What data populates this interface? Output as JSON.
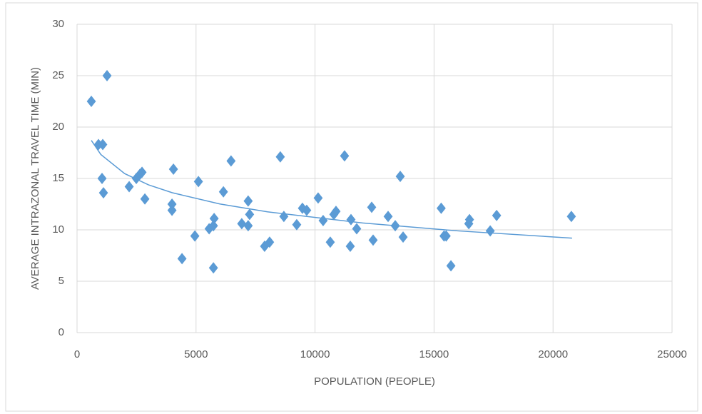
{
  "chart_data": {
    "type": "scatter",
    "x_label": "POPULATION (PEOPLE)",
    "y_label": "AVERAGE INTRAZONAL TRAVEL TIME (MIN)",
    "series": [
      {
        "name": "Intrazonal travel time",
        "color": "#5b9bd5",
        "x": [
          600,
          1260,
          900,
          1080,
          1050,
          1110,
          2190,
          2490,
          2640,
          2730,
          2850,
          4050,
          3990,
          3990,
          4410,
          4950,
          5100,
          5550,
          5730,
          5760,
          5730,
          6150,
          6470,
          6920,
          7190,
          7250,
          7190,
          7880,
          8090,
          8540,
          8690,
          9230,
          9470,
          9650,
          10130,
          10340,
          10640,
          10790,
          10880,
          11240,
          11510,
          11480,
          11750,
          12380,
          12440,
          13070,
          13370,
          13580,
          13700,
          15300,
          15420,
          15510,
          15710,
          16460,
          16490,
          17360,
          17630,
          20770
        ],
        "values": [
          22.5,
          25,
          18.3,
          18.3,
          15,
          13.6,
          14.2,
          15,
          15.4,
          15.6,
          13,
          15.9,
          12.5,
          11.9,
          7.2,
          9.4,
          14.7,
          10.1,
          10.4,
          11.1,
          6.3,
          13.7,
          16.7,
          10.6,
          12.8,
          11.5,
          10.4,
          8.4,
          8.8,
          17.1,
          11.3,
          10.5,
          12.1,
          11.9,
          13.1,
          10.9,
          8.8,
          11.5,
          11.8,
          17.2,
          11,
          8.4,
          10.1,
          12.2,
          9,
          11.3,
          10.4,
          15.2,
          9.3,
          12.1,
          9.4,
          9.4,
          6.5,
          10.6,
          11,
          9.9,
          11.4,
          11.3
        ]
      }
    ],
    "trendline": {
      "type": "logarithmic",
      "color": "#5b9bd5",
      "x": [
        600,
        1000,
        2000,
        3000,
        4000,
        6000,
        8000,
        12000,
        16000,
        20800
      ],
      "values": [
        18.7,
        17.33,
        15.47,
        14.38,
        13.61,
        12.52,
        11.75,
        10.67,
        9.9,
        9.19
      ]
    },
    "xlim": [
      0,
      25000
    ],
    "xticks": [
      0,
      5000,
      10000,
      15000,
      20000,
      25000
    ],
    "ylim": [
      0,
      30
    ],
    "yticks": [
      0,
      5,
      10,
      15,
      20,
      25,
      30
    ],
    "grid": true
  }
}
